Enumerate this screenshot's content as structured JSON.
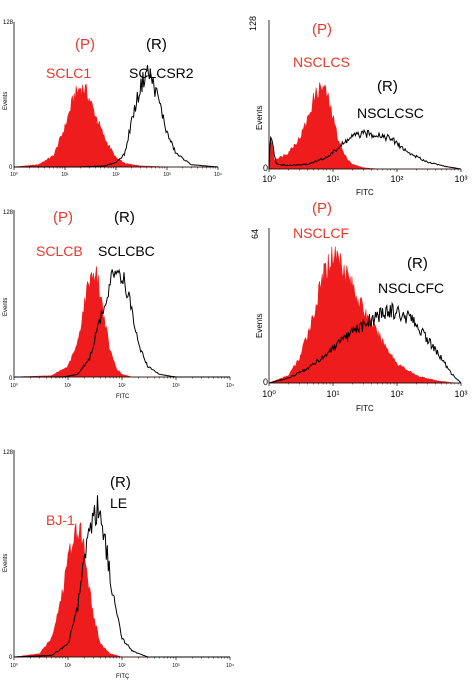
{
  "colors": {
    "p_fill": "#ee1c1c",
    "r_line": "#000000",
    "p_label": "#e8382c",
    "r_label": "#000000"
  },
  "chart_data": [
    {
      "type": "area",
      "ylabel": "Events",
      "xlabel": "",
      "xscale": "log",
      "xlim": [
        1,
        10000
      ],
      "ylim": [
        0,
        128
      ],
      "ymax_label": "128",
      "ymin_label": "0",
      "xticks": [
        "10⁰",
        "10¹",
        "10²",
        "10³",
        "10⁴"
      ],
      "labels": {
        "p_tag": "(P)",
        "p_name": "SCLC1",
        "r_tag": "(R)",
        "r_name": "SCLCSR2"
      },
      "series": [
        {
          "name": "SCLC1",
          "kind": "filled",
          "color": "#ee1c1c",
          "x": [
            1,
            3,
            6,
            10,
            15,
            20,
            25,
            30,
            40,
            60,
            100,
            150,
            300,
            1000
          ],
          "y": [
            0,
            2,
            10,
            35,
            62,
            70,
            68,
            60,
            45,
            25,
            8,
            3,
            1,
            0
          ]
        },
        {
          "name": "SCLCSR2",
          "kind": "line",
          "color": "#000000",
          "x": [
            1,
            20,
            60,
            100,
            150,
            200,
            300,
            400,
            500,
            700,
            1000,
            1500,
            3000,
            10000
          ],
          "y": [
            0,
            0,
            1,
            4,
            12,
            40,
            70,
            85,
            78,
            58,
            30,
            12,
            2,
            0
          ]
        }
      ]
    },
    {
      "type": "area",
      "ylabel": "Events",
      "xlabel": "FITC",
      "xscale": "log",
      "xlim": [
        1,
        1000
      ],
      "ylim": [
        0,
        128
      ],
      "ymax_label": "128",
      "ymin_label": "0",
      "xticks": [
        "10⁰",
        "10¹",
        "10²",
        "10³"
      ],
      "labels": {
        "p_tag": "(P)",
        "p_name": "NSCLCS",
        "r_tag": "(R)",
        "r_name": "NSCLCSC"
      },
      "series": [
        {
          "name": "NSCLCS",
          "kind": "filled",
          "color": "#ee1c1c",
          "x": [
            1,
            1.05,
            1.2,
            1.5,
            2,
            3,
            4,
            5,
            6,
            7,
            8,
            10,
            12,
            15,
            20,
            30,
            50
          ],
          "y": [
            0,
            30,
            8,
            10,
            14,
            26,
            42,
            60,
            68,
            70,
            64,
            44,
            26,
            12,
            4,
            1,
            0
          ]
        },
        {
          "name": "NSCLCSC",
          "kind": "line",
          "color": "#000000",
          "x": [
            1,
            1.05,
            1.3,
            2,
            4,
            8,
            12,
            20,
            30,
            50,
            80,
            100,
            150,
            300,
            600,
            1000
          ],
          "y": [
            0,
            30,
            4,
            3,
            4,
            10,
            18,
            28,
            30,
            30,
            26,
            22,
            14,
            6,
            2,
            0
          ]
        }
      ]
    },
    {
      "type": "area",
      "ylabel": "Events",
      "xlabel": "FITC",
      "xscale": "log",
      "xlim": [
        1,
        10000
      ],
      "ylim": [
        0,
        128
      ],
      "ymax_label": "128",
      "ymin_label": "0",
      "xticks": [
        "10⁰",
        "10¹",
        "10²",
        "10³",
        "10⁴"
      ],
      "labels": {
        "p_tag": "(P)",
        "p_name": "SCLCB",
        "r_tag": "(R)",
        "r_name": "SCLCBC"
      },
      "series": [
        {
          "name": "SCLCB",
          "kind": "filled",
          "color": "#ee1c1c",
          "x": [
            1,
            5,
            10,
            15,
            20,
            25,
            30,
            35,
            40,
            50,
            60,
            80,
            100,
            150
          ],
          "y": [
            0,
            1,
            8,
            25,
            55,
            75,
            80,
            76,
            62,
            38,
            20,
            6,
            2,
            0
          ]
        },
        {
          "name": "SCLCBC",
          "kind": "line",
          "color": "#000000",
          "x": [
            1,
            8,
            15,
            25,
            40,
            60,
            80,
            100,
            120,
            150,
            200,
            300,
            500,
            1000
          ],
          "y": [
            0,
            0,
            2,
            14,
            45,
            72,
            82,
            80,
            70,
            50,
            26,
            8,
            2,
            0
          ]
        }
      ]
    },
    {
      "type": "area",
      "ylabel": "Events",
      "xlabel": "FITC",
      "xscale": "log",
      "xlim": [
        1,
        1000
      ],
      "ylim": [
        0,
        64
      ],
      "ymax_label": "64",
      "ymin_label": "0",
      "xticks": [
        "10⁰",
        "10¹",
        "10²",
        "10³"
      ],
      "labels": {
        "p_tag": "(P)",
        "p_name": "NSCLCF",
        "r_tag": "(R)",
        "r_name": "NSCLCFC"
      },
      "series": [
        {
          "name": "NSCLCF",
          "kind": "filled",
          "color": "#ee1c1c",
          "x": [
            1,
            2,
            3,
            5,
            7,
            10,
            12,
            15,
            20,
            30,
            50,
            80,
            100,
            200,
            400,
            800
          ],
          "y": [
            0,
            3,
            10,
            28,
            44,
            53,
            52,
            48,
            40,
            30,
            20,
            12,
            8,
            3,
            1,
            0
          ]
        },
        {
          "name": "NSCLCFC",
          "kind": "line",
          "color": "#000000",
          "x": [
            1,
            2,
            4,
            8,
            15,
            30,
            50,
            80,
            100,
            150,
            200,
            300,
            500,
            700,
            1000
          ],
          "y": [
            0,
            2,
            6,
            12,
            18,
            24,
            28,
            30,
            29,
            27,
            24,
            18,
            10,
            4,
            0
          ]
        }
      ]
    },
    {
      "type": "area",
      "ylabel": "Events",
      "xlabel": "FITÇ",
      "xscale": "log",
      "xlim": [
        1,
        10000
      ],
      "ylim": [
        0,
        128
      ],
      "ymax_label": "128",
      "ymin_label": "0",
      "xticks": [
        "10⁰",
        "10¹",
        "10²",
        "10³",
        "10⁴"
      ],
      "labels": {
        "p_tag": "",
        "p_name": "BJ-1",
        "r_tag": "(R)",
        "r_name": "LE"
      },
      "series": [
        {
          "name": "BJ-1",
          "kind": "filled",
          "color": "#ee1c1c",
          "x": [
            1,
            3,
            5,
            8,
            10,
            13,
            15,
            18,
            20,
            25,
            30,
            40,
            60,
            100
          ],
          "y": [
            0,
            2,
            12,
            40,
            62,
            78,
            80,
            75,
            66,
            42,
            24,
            8,
            2,
            0
          ]
        },
        {
          "name": "LE",
          "kind": "line",
          "color": "#000000",
          "x": [
            1,
            5,
            10,
            15,
            20,
            25,
            30,
            35,
            40,
            50,
            60,
            80,
            100,
            150,
            300
          ],
          "y": [
            0,
            1,
            8,
            30,
            62,
            80,
            90,
            92,
            88,
            70,
            50,
            26,
            12,
            4,
            0
          ]
        }
      ]
    }
  ]
}
